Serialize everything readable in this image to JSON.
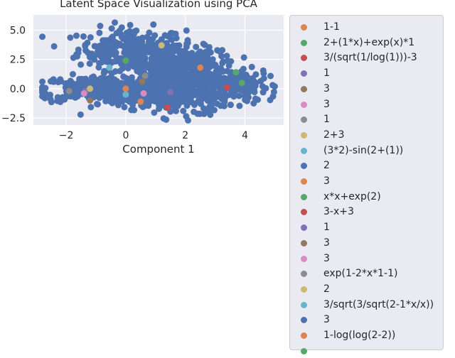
{
  "chart_data": {
    "type": "scatter",
    "title": "Latent Space Visualization using PCA",
    "xlabel": "Component 1",
    "ylabel": "",
    "xlim": [
      -3.1,
      5.3
    ],
    "ylim": [
      -3.1,
      6.3
    ],
    "xticks": [
      -2,
      0,
      2,
      4
    ],
    "xtick_labels": [
      "−2",
      "0",
      "2",
      "4"
    ],
    "yticks": [
      -2.5,
      0.0,
      2.5,
      5.0
    ],
    "ytick_labels": [
      "−2.5",
      "0.0",
      "2.5",
      "5.0"
    ],
    "grid": true,
    "legend_position": "right, outside plot",
    "background_color": "#eaeaf2",
    "background_series_color": "#4c72b0",
    "series": [
      {
        "name": "1-1",
        "color": "#dd8452",
        "x": 0.0,
        "y": 0.0
      },
      {
        "name": "2+(1*x)+exp(x)*1",
        "color": "#55a868",
        "x": 0.0,
        "y": 2.4
      },
      {
        "name": "3/(sqrt(1/log(1)))-3",
        "color": "#c44e52",
        "x": 1.4,
        "y": -1.6
      },
      {
        "name": "1",
        "color": "#8172b3",
        "x": 1.5,
        "y": -0.3
      },
      {
        "name": "3",
        "color": "#937860",
        "x": -1.2,
        "y": -1.0
      },
      {
        "name": "3",
        "color": "#da8bc3",
        "x": 0.6,
        "y": -0.4
      },
      {
        "name": "1",
        "color": "#8c8c8c",
        "x": 0.65,
        "y": 1.1
      },
      {
        "name": "2+3",
        "color": "#ccb974",
        "x": 1.2,
        "y": 3.7
      },
      {
        "name": "(3*2)-sin(2+(1))",
        "color": "#64b5cd",
        "x": -0.55,
        "y": 1.8
      },
      {
        "name": "2",
        "color": "#4c72b0",
        "x": 2.0,
        "y": 0.8
      },
      {
        "name": "3",
        "color": "#dd8452",
        "x": 2.5,
        "y": 1.8
      },
      {
        "name": "x*x+exp(2)",
        "color": "#55a868",
        "x": 3.7,
        "y": 1.4
      },
      {
        "name": "3-x+3",
        "color": "#c44e52",
        "x": 3.4,
        "y": 0.1
      },
      {
        "name": "1",
        "color": "#8172b3",
        "x": -1.35,
        "y": -0.2
      },
      {
        "name": "3",
        "color": "#937860",
        "x": 0.55,
        "y": 0.6
      },
      {
        "name": "3",
        "color": "#da8bc3",
        "x": -1.4,
        "y": -0.4
      },
      {
        "name": "exp(1-2*x*1-1)",
        "color": "#8c8c8c",
        "x": -1.9,
        "y": -0.2
      },
      {
        "name": "2",
        "color": "#ccb974",
        "x": -1.2,
        "y": 0.0
      },
      {
        "name": "3/sqrt(3/sqrt(2-1*x/x))",
        "color": "#64b5cd",
        "x": 0.0,
        "y": -0.5
      },
      {
        "name": "3",
        "color": "#4c72b0",
        "x": 1.7,
        "y": -0.5
      },
      {
        "name": "1-log(log(2-2))",
        "color": "#dd8452",
        "x": 0.5,
        "y": -1.1
      },
      {
        "name": "",
        "color": "#55a868",
        "x": 3.9,
        "y": 0.5
      }
    ]
  }
}
